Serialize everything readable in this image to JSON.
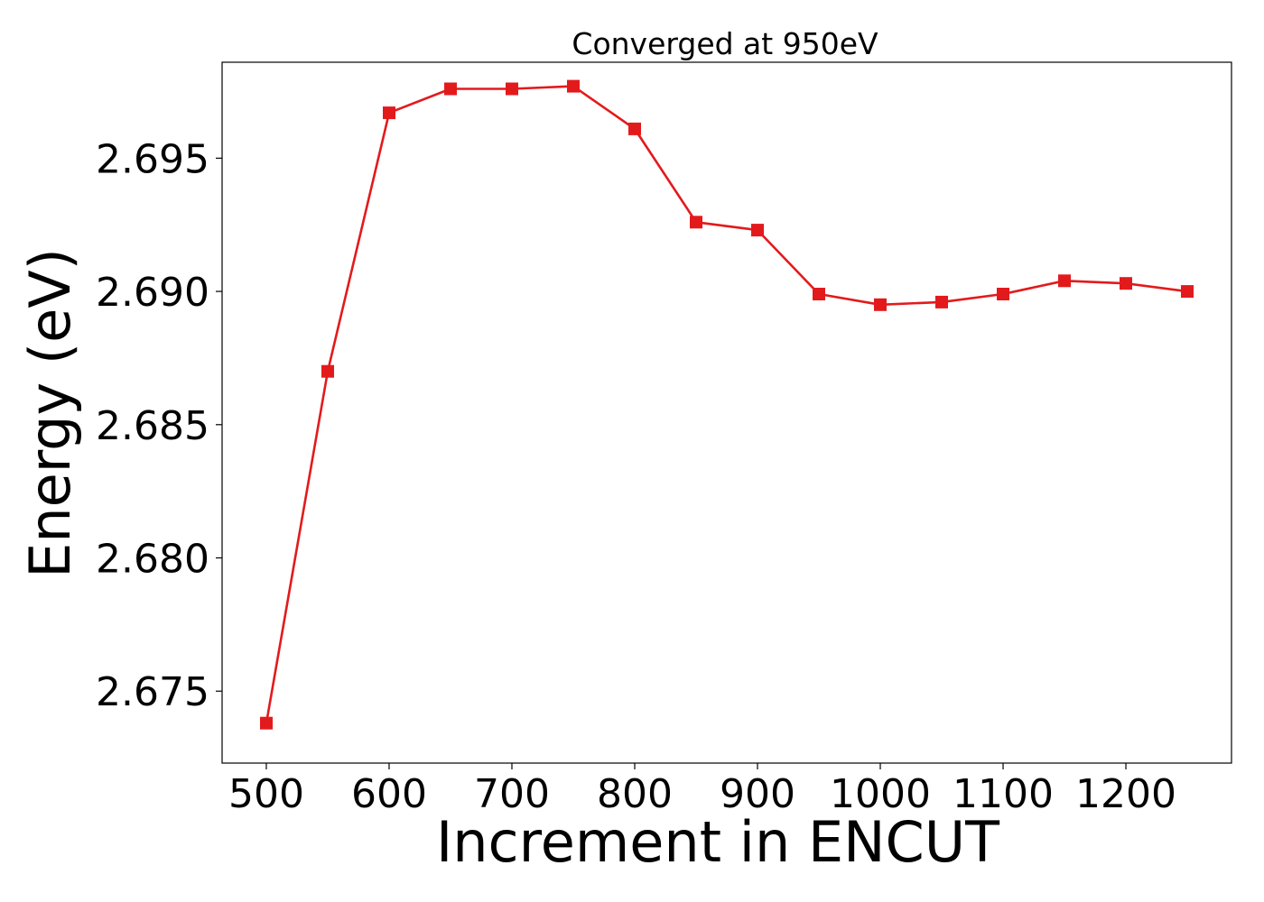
{
  "chart_data": {
    "type": "line",
    "title": "Converged at 950eV",
    "xlabel": "Increment in ENCUT",
    "ylabel": "Energy (eV)",
    "xlim": [
      464,
      1286
    ],
    "ylim": [
      2.6723,
      2.6986
    ],
    "xticks": [
      500,
      600,
      700,
      800,
      900,
      1000,
      1100,
      1200
    ],
    "yticks": [
      2.675,
      2.68,
      2.685,
      2.69,
      2.695
    ],
    "xtick_labels": [
      "500",
      "600",
      "700",
      "800",
      "900",
      "1000",
      "1100",
      "1200"
    ],
    "ytick_labels": [
      "2.675",
      "2.680",
      "2.685",
      "2.690",
      "2.695"
    ],
    "grid": false,
    "marker": "square",
    "series": [
      {
        "color": "#e31a1c",
        "x": [
          500,
          550,
          600,
          650,
          700,
          750,
          800,
          850,
          900,
          950,
          1000,
          1050,
          1100,
          1150,
          1200,
          1250
        ],
        "y": [
          2.6738,
          2.687,
          2.6967,
          2.6976,
          2.6976,
          2.6977,
          2.6961,
          2.6926,
          2.6923,
          2.6899,
          2.6895,
          2.6896,
          2.6899,
          2.6904,
          2.6903,
          2.69
        ]
      }
    ]
  }
}
